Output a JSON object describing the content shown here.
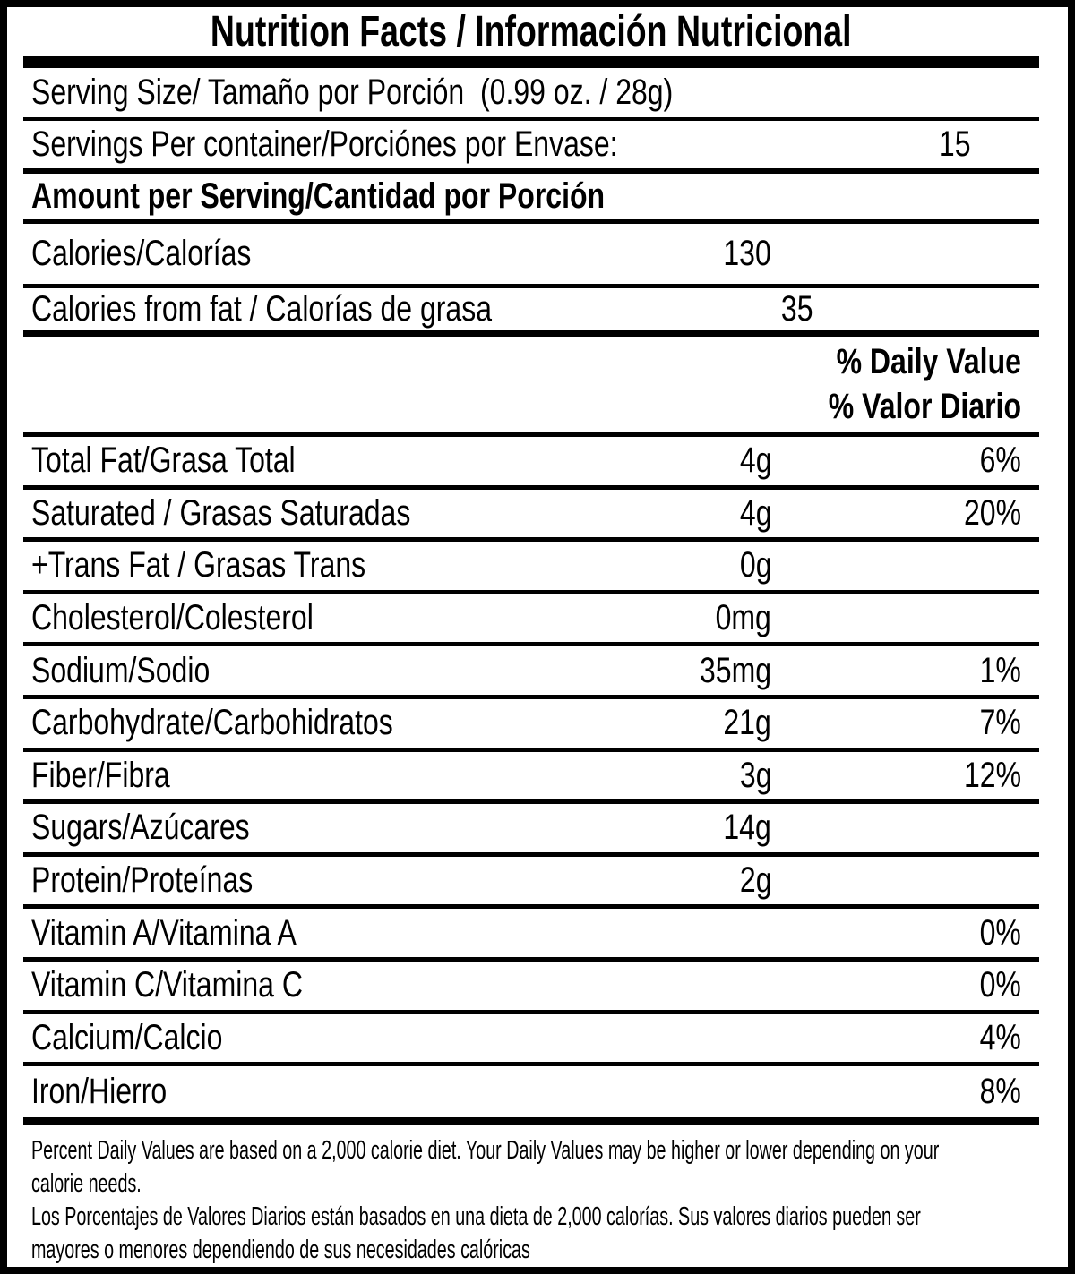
{
  "title": "Nutrition Facts / Información Nutricional",
  "serving": {
    "label": "Serving Size/ Tamaño por Porción  (0.99 oz. / 28g)"
  },
  "servings_per_container": {
    "label": "Servings Per container/Porciónes por Envase:",
    "value": "15"
  },
  "amount_heading": "Amount per Serving/Cantidad por Porción",
  "calories": {
    "label": "Calories/Calorías",
    "value": "130"
  },
  "calories_from_fat": {
    "label": "Calories from fat / Calorías de grasa",
    "value": "35"
  },
  "dv_heading": {
    "line1": "% Daily Value",
    "line2": "% Valor Diario"
  },
  "nutrients": [
    {
      "label": "Total Fat/Grasa Total",
      "amount": "4g",
      "dv": "6%"
    },
    {
      "label": "Saturated / Grasas Saturadas",
      "amount": "4g",
      "dv": "20%"
    },
    {
      "label": "+Trans Fat / Grasas Trans",
      "amount": "0g",
      "dv": ""
    },
    {
      "label": "Cholesterol/Colesterol",
      "amount": "0mg",
      "dv": ""
    },
    {
      "label": "Sodium/Sodio",
      "amount": "35mg",
      "dv": "1%"
    },
    {
      "label": "Carbohydrate/Carbohidratos",
      "amount": "21g",
      "dv": "7%"
    },
    {
      "label": "Fiber/Fibra",
      "amount": "3g",
      "dv": "12%"
    },
    {
      "label": "Sugars/Azúcares",
      "amount": "14g",
      "dv": ""
    },
    {
      "label": "Protein/Proteínas",
      "amount": "2g",
      "dv": ""
    },
    {
      "label": "Vitamin A/Vitamina A",
      "amount": "",
      "dv": "0%"
    },
    {
      "label": "Vitamin C/Vitamina C",
      "amount": "",
      "dv": "0%"
    },
    {
      "label": "Calcium/Calcio",
      "amount": "",
      "dv": "4%"
    },
    {
      "label": "Iron/Hierro",
      "amount": "",
      "dv": "8%"
    }
  ],
  "footnote": {
    "text": "Percent Daily Values are based on a 2,000 calorie diet. Your Daily Values may be higher or lower depending on your\ncalorie needs.\nLos Porcentajes de Valores Diarios están basados en una dieta de 2,000 calorías. Sus valores diarios pueden ser\nmayores o menores dependiendo de sus necesidades calóricas"
  },
  "colors": {
    "ink": "#000000",
    "paper": "#ffffff"
  }
}
